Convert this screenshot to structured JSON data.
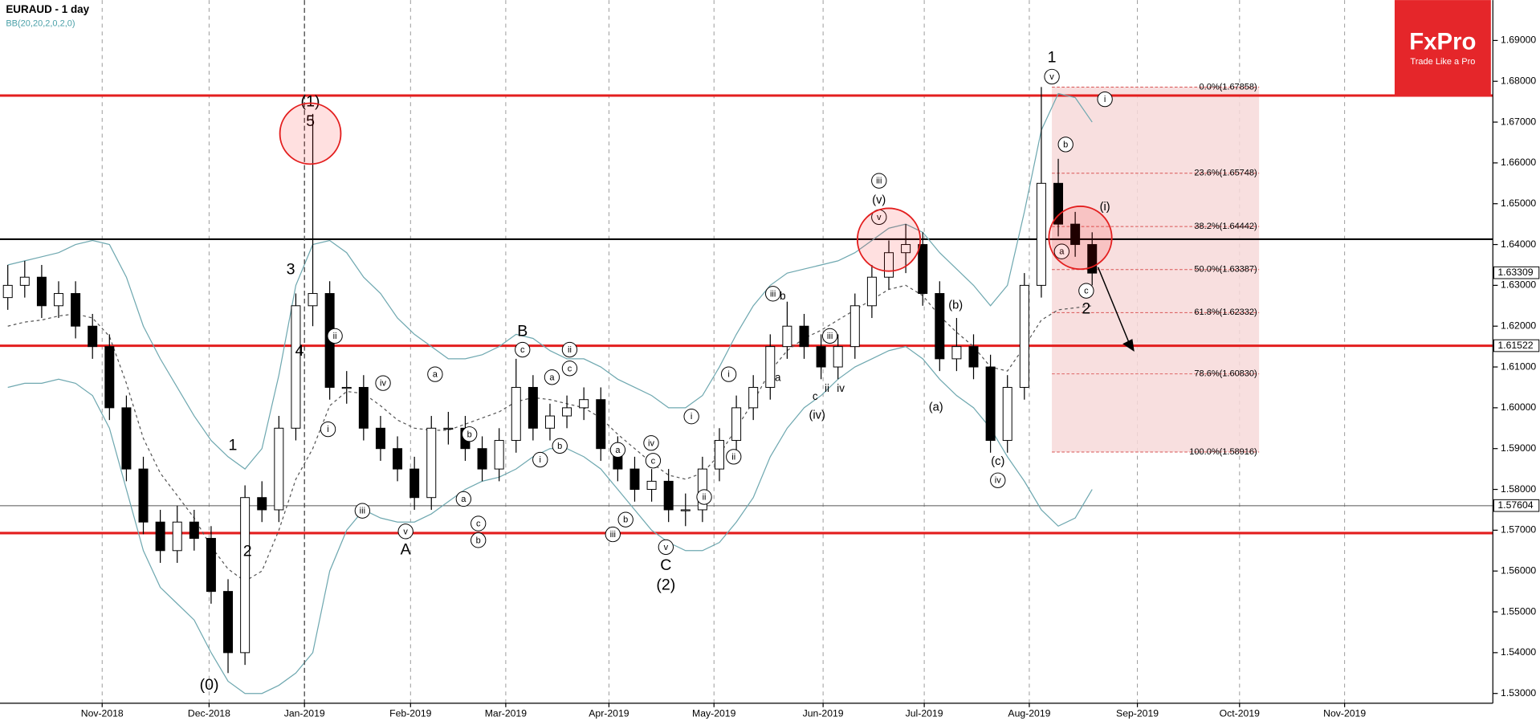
{
  "chart_data": {
    "type": "candlestick",
    "title": "EURAUD - 1 day",
    "subtitle": "BB(20,20,2,0,2,0)",
    "logo": {
      "brand": "FxPro",
      "tagline": "Trade Like a Pro"
    },
    "categories": [
      null,
      null,
      null,
      null,
      null,
      null,
      null,
      null,
      null,
      null,
      null,
      null,
      null,
      null,
      null,
      null,
      null,
      null,
      null,
      null,
      null,
      null,
      null,
      null,
      null,
      null,
      null,
      null,
      null,
      null,
      null,
      null,
      null,
      null,
      null,
      null,
      null,
      null,
      null,
      null,
      null,
      null,
      null,
      null,
      null,
      null,
      null,
      null,
      null,
      null,
      null,
      null,
      null,
      null,
      null,
      null,
      null,
      null,
      null,
      null,
      null,
      null,
      null,
      null,
      null
    ],
    "candles": [
      [
        1.627,
        1.635,
        1.624,
        1.63
      ],
      [
        1.63,
        1.636,
        1.627,
        1.632
      ],
      [
        1.632,
        1.635,
        1.622,
        1.625
      ],
      [
        1.625,
        1.631,
        1.622,
        1.628
      ],
      [
        1.628,
        1.631,
        1.617,
        1.62
      ],
      [
        1.62,
        1.623,
        1.612,
        1.615
      ],
      [
        1.615,
        1.618,
        1.597,
        1.6
      ],
      [
        1.6,
        1.603,
        1.582,
        1.585
      ],
      [
        1.585,
        1.588,
        1.569,
        1.572
      ],
      [
        1.572,
        1.575,
        1.562,
        1.565
      ],
      [
        1.565,
        1.576,
        1.562,
        1.572
      ],
      [
        1.572,
        1.575,
        1.565,
        1.568
      ],
      [
        1.568,
        1.571,
        1.552,
        1.555
      ],
      [
        1.555,
        1.558,
        1.535,
        1.54
      ],
      [
        1.54,
        1.581,
        1.537,
        1.578
      ],
      [
        1.578,
        1.582,
        1.572,
        1.575
      ],
      [
        1.575,
        1.598,
        1.572,
        1.595
      ],
      [
        1.595,
        1.628,
        1.592,
        1.625
      ],
      [
        1.625,
        1.672,
        1.62,
        1.628
      ],
      [
        1.628,
        1.631,
        1.602,
        1.605
      ],
      [
        1.605,
        1.609,
        1.601,
        1.605
      ],
      [
        1.605,
        1.608,
        1.592,
        1.595
      ],
      [
        1.595,
        1.598,
        1.587,
        1.59
      ],
      [
        1.59,
        1.593,
        1.582,
        1.585
      ],
      [
        1.585,
        1.588,
        1.575,
        1.578
      ],
      [
        1.578,
        1.598,
        1.575,
        1.595
      ],
      [
        1.595,
        1.599,
        1.591,
        1.595
      ],
      [
        1.595,
        1.598,
        1.587,
        1.59
      ],
      [
        1.59,
        1.593,
        1.582,
        1.585
      ],
      [
        1.585,
        1.595,
        1.582,
        1.592
      ],
      [
        1.592,
        1.612,
        1.589,
        1.605
      ],
      [
        1.605,
        1.608,
        1.592,
        1.595
      ],
      [
        1.595,
        1.601,
        1.592,
        1.598
      ],
      [
        1.598,
        1.603,
        1.595,
        1.6
      ],
      [
        1.6,
        1.605,
        1.597,
        1.602
      ],
      [
        1.602,
        1.605,
        1.587,
        1.59
      ],
      [
        1.59,
        1.593,
        1.582,
        1.585
      ],
      [
        1.585,
        1.588,
        1.577,
        1.58
      ],
      [
        1.58,
        1.585,
        1.577,
        1.582
      ],
      [
        1.582,
        1.585,
        1.572,
        1.575
      ],
      [
        1.575,
        1.579,
        1.571,
        1.575
      ],
      [
        1.575,
        1.588,
        1.572,
        1.585
      ],
      [
        1.585,
        1.595,
        1.582,
        1.592
      ],
      [
        1.592,
        1.603,
        1.589,
        1.6
      ],
      [
        1.6,
        1.608,
        1.597,
        1.605
      ],
      [
        1.605,
        1.618,
        1.602,
        1.615
      ],
      [
        1.615,
        1.626,
        1.612,
        1.62
      ],
      [
        1.62,
        1.623,
        1.612,
        1.615
      ],
      [
        1.615,
        1.618,
        1.607,
        1.61
      ],
      [
        1.61,
        1.618,
        1.607,
        1.615
      ],
      [
        1.615,
        1.628,
        1.612,
        1.625
      ],
      [
        1.625,
        1.635,
        1.622,
        1.632
      ],
      [
        1.632,
        1.641,
        1.629,
        1.638
      ],
      [
        1.638,
        1.645,
        1.633,
        1.64
      ],
      [
        1.64,
        1.643,
        1.625,
        1.628
      ],
      [
        1.628,
        1.631,
        1.609,
        1.612
      ],
      [
        1.612,
        1.622,
        1.609,
        1.615
      ],
      [
        1.615,
        1.618,
        1.607,
        1.61
      ],
      [
        1.61,
        1.613,
        1.589,
        1.592
      ],
      [
        1.592,
        1.608,
        1.589,
        1.605
      ],
      [
        1.605,
        1.633,
        1.602,
        1.63
      ],
      [
        1.63,
        1.6786,
        1.627,
        1.655
      ],
      [
        1.655,
        1.661,
        1.642,
        1.645
      ],
      [
        1.645,
        1.648,
        1.637,
        1.64
      ],
      [
        1.64,
        1.643,
        1.63,
        1.633
      ]
    ],
    "bollinger": {
      "color": "#6fa8b0",
      "upper": [
        1.635,
        1.636,
        1.637,
        1.638,
        1.64,
        1.641,
        1.64,
        1.632,
        1.62,
        1.612,
        1.605,
        1.598,
        1.592,
        1.588,
        1.585,
        1.59,
        1.608,
        1.63,
        1.64,
        1.641,
        1.638,
        1.632,
        1.628,
        1.622,
        1.618,
        1.615,
        1.612,
        1.612,
        1.613,
        1.615,
        1.618,
        1.617,
        1.614,
        1.612,
        1.612,
        1.61,
        1.607,
        1.605,
        1.603,
        1.6,
        1.6,
        1.603,
        1.61,
        1.618,
        1.625,
        1.63,
        1.633,
        1.634,
        1.635,
        1.636,
        1.638,
        1.641,
        1.644,
        1.645,
        1.643,
        1.638,
        1.634,
        1.63,
        1.625,
        1.63,
        1.648,
        1.668,
        1.677,
        1.676,
        1.67
      ],
      "middle": [
        1.62,
        1.621,
        1.6215,
        1.6225,
        1.623,
        1.622,
        1.6175,
        1.606,
        1.5925,
        1.584,
        1.5785,
        1.573,
        1.566,
        1.5605,
        1.5575,
        1.56,
        1.57,
        1.5825,
        1.59,
        1.6005,
        1.604,
        1.6035,
        1.6005,
        1.597,
        1.595,
        1.5945,
        1.5945,
        1.596,
        1.5975,
        1.599,
        1.6015,
        1.6025,
        1.602,
        1.601,
        1.6,
        1.5975,
        1.5935,
        1.59,
        1.5865,
        1.5835,
        1.5825,
        1.584,
        1.5885,
        1.595,
        1.6015,
        1.609,
        1.614,
        1.617,
        1.619,
        1.6215,
        1.624,
        1.6265,
        1.629,
        1.63,
        1.6275,
        1.6225,
        1.6185,
        1.615,
        1.61,
        1.609,
        1.615,
        1.6215,
        1.624,
        1.6245,
        1.625
      ],
      "lower": [
        1.605,
        1.606,
        1.606,
        1.607,
        1.606,
        1.603,
        1.595,
        1.58,
        1.565,
        1.556,
        1.552,
        1.548,
        1.54,
        1.533,
        1.53,
        1.53,
        1.532,
        1.535,
        1.54,
        1.56,
        1.57,
        1.575,
        1.573,
        1.572,
        1.572,
        1.574,
        1.577,
        1.58,
        1.582,
        1.583,
        1.585,
        1.588,
        1.59,
        1.59,
        1.588,
        1.585,
        1.58,
        1.575,
        1.57,
        1.567,
        1.565,
        1.565,
        1.567,
        1.572,
        1.578,
        1.588,
        1.595,
        1.6,
        1.603,
        1.607,
        1.61,
        1.612,
        1.614,
        1.615,
        1.612,
        1.607,
        1.603,
        1.6,
        1.595,
        1.588,
        1.582,
        1.575,
        1.571,
        1.573,
        1.58
      ]
    },
    "xlim": [
      -0.46,
      87.65
    ],
    "xticks": [
      {
        "value": 5.57,
        "label": "Nov-2018"
      },
      {
        "value": 11.88,
        "label": "Dec-2018"
      },
      {
        "value": 17.51,
        "label": "Jan-2019"
      },
      {
        "value": 23.77,
        "label": "Feb-2019"
      },
      {
        "value": 29.39,
        "label": "Mar-2019"
      },
      {
        "value": 35.48,
        "label": "Apr-2019"
      },
      {
        "value": 41.68,
        "label": "May-2019"
      },
      {
        "value": 48.12,
        "label": "Jun-2019"
      },
      {
        "value": 54.09,
        "label": "Jul-2019"
      },
      {
        "value": 60.29,
        "label": "Aug-2019"
      },
      {
        "value": 66.67,
        "label": "Sep-2019"
      },
      {
        "value": 72.7,
        "label": "Oct-2019"
      },
      {
        "value": 78.9,
        "label": "Nov-2019"
      }
    ],
    "ylim": [
      1.5276,
      1.6999
    ],
    "yticks": [
      {
        "value": 1.53,
        "label": "1.53000"
      },
      {
        "value": 1.54,
        "label": "1.54000"
      },
      {
        "value": 1.55,
        "label": "1.55000"
      },
      {
        "value": 1.56,
        "label": "1.56000"
      },
      {
        "value": 1.57,
        "label": "1.57000"
      },
      {
        "value": 1.58,
        "label": "1.58000"
      },
      {
        "value": 1.59,
        "label": "1.59000"
      },
      {
        "value": 1.6,
        "label": "1.60000"
      },
      {
        "value": 1.61,
        "label": "1.61000"
      },
      {
        "value": 1.62,
        "label": "1.62000"
      },
      {
        "value": 1.63,
        "label": "1.63000"
      },
      {
        "value": 1.64,
        "label": "1.64000"
      },
      {
        "value": 1.65,
        "label": "1.65000"
      },
      {
        "value": 1.66,
        "label": "1.66000"
      },
      {
        "value": 1.67,
        "label": "1.67000"
      },
      {
        "value": 1.68,
        "label": "1.68000"
      },
      {
        "value": 1.69,
        "label": "1.69000"
      }
    ],
    "grid": true,
    "levels": [
      {
        "value": 1.6765,
        "color": "#e31e1e"
      },
      {
        "value": 1.6413,
        "color": "#000000"
      },
      {
        "value": 1.6152,
        "color": "#e31e1e"
      },
      {
        "value": 1.576,
        "color": "#555555"
      },
      {
        "value": 1.5693,
        "color": "#e31e1e"
      }
    ],
    "price_labels": [
      {
        "value": 1.63309,
        "label": "1.63309"
      },
      {
        "value": 1.61522,
        "label": "1.61522"
      },
      {
        "value": 1.57604,
        "label": "1.57604"
      }
    ],
    "fib_levels": [
      {
        "value": 1.67858,
        "label": "0.0%(1.67858)"
      },
      {
        "value": 1.65748,
        "label": "23.6%(1.65748)"
      },
      {
        "value": 1.64442,
        "label": "38.2%(1.64442)"
      },
      {
        "value": 1.63387,
        "label": "50.0%(1.63387)"
      },
      {
        "value": 1.62332,
        "label": "61.8%(1.62332)"
      },
      {
        "value": 1.6083,
        "label": "78.6%(1.60830)"
      },
      {
        "value": 1.58916,
        "label": "100.0%(1.58916)"
      }
    ],
    "wave_labels": [
      "(0)",
      "1",
      "2",
      "3",
      "4",
      "(1)",
      "5",
      "A",
      "B",
      "C",
      "(2)",
      "1",
      "2",
      "(v)",
      "(iv)",
      "(a)",
      "(b)",
      "(c)",
      "(i)",
      "a",
      "b",
      "c",
      "ii",
      "iv",
      "i"
    ],
    "wave_labels_circled": [
      "ii",
      "i",
      "iv",
      "iii",
      "v",
      "a",
      "b",
      "a",
      "c",
      "b",
      "c",
      "a",
      "c",
      "ii",
      "b",
      "i",
      "a",
      "iv",
      "c",
      "b",
      "iii",
      "v",
      "i",
      "ii",
      "i",
      "ii",
      "iii",
      "v",
      "iii",
      "iii",
      "iv",
      "v",
      "i",
      "b",
      "a",
      "c"
    ]
  }
}
